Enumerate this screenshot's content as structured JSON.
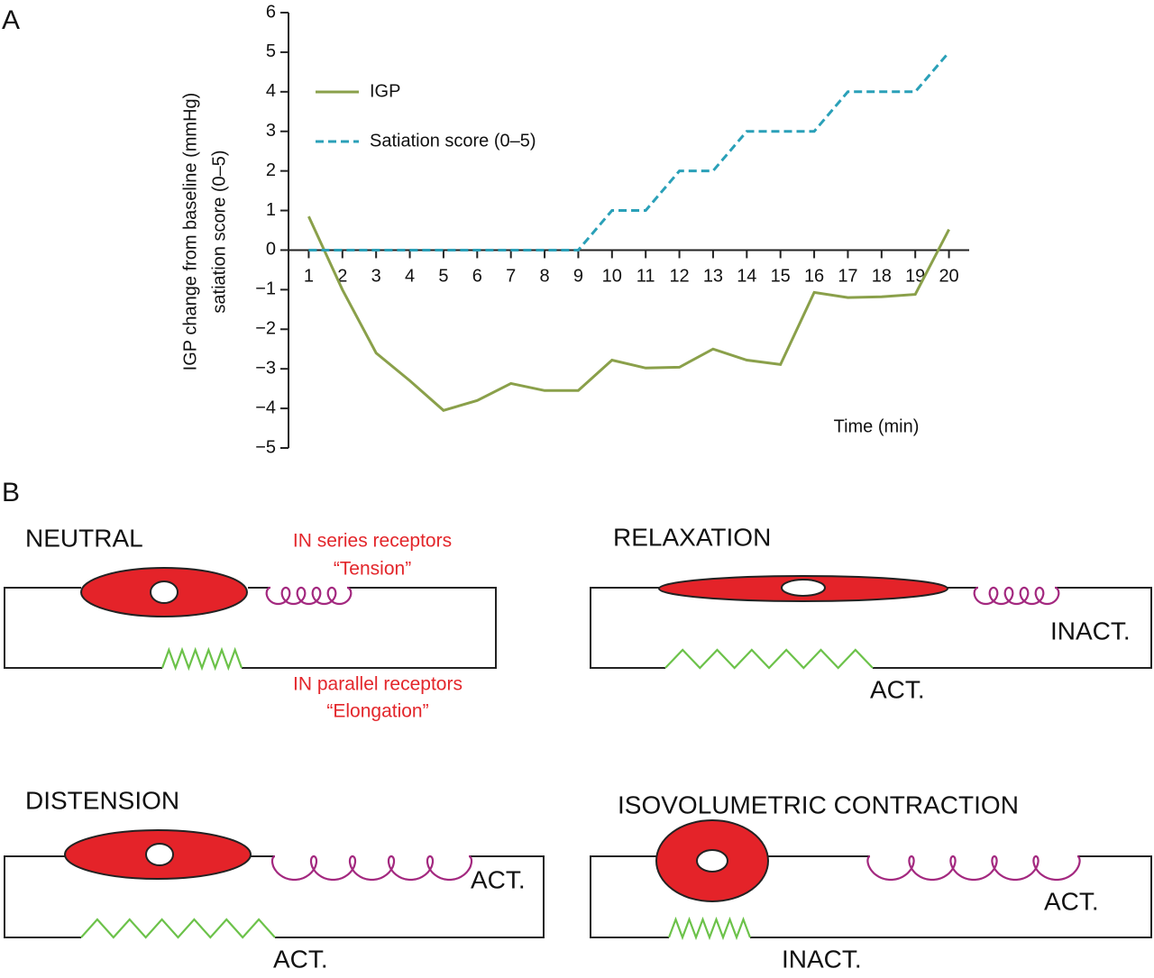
{
  "chart_data": {
    "type": "line",
    "panel_label": "A",
    "x": [
      1,
      2,
      3,
      4,
      5,
      6,
      7,
      8,
      9,
      10,
      11,
      12,
      13,
      14,
      15,
      16,
      17,
      18,
      19,
      20
    ],
    "xlim": [
      0.4,
      20.6
    ],
    "xticks": [
      1,
      2,
      3,
      4,
      5,
      6,
      7,
      8,
      9,
      10,
      11,
      12,
      13,
      14,
      15,
      16,
      17,
      18,
      19,
      20
    ],
    "ylim": [
      -5,
      6
    ],
    "yticks": [
      {
        "value": -5,
        "label": "−5"
      },
      {
        "value": -4,
        "label": "−4"
      },
      {
        "value": -3,
        "label": "−3"
      },
      {
        "value": -2,
        "label": "−2"
      },
      {
        "value": -1,
        "label": "−1"
      },
      0,
      1,
      2,
      3,
      4,
      5,
      6
    ],
    "y_label": [
      "IGP change from baseline (mmHg)",
      "satiation score (0–5)"
    ],
    "x_label": "Time (min)",
    "legend": "upper left",
    "series": [
      {
        "name": "IGP",
        "color": "#8aa04a",
        "style": "solid",
        "values": [
          0.85,
          -1.0,
          -2.6,
          -3.3,
          -4.05,
          -3.8,
          -3.37,
          -3.55,
          -3.55,
          -2.78,
          -2.98,
          -2.96,
          -2.5,
          -2.78,
          -2.89,
          -1.07,
          -1.2,
          -1.18,
          -1.12,
          0.52
        ]
      },
      {
        "name": "Satiation score (0–5)",
        "color": "#2aa0b8",
        "style": "dashed",
        "values": [
          0,
          0,
          0,
          0,
          0,
          0,
          0,
          0,
          0,
          1,
          1,
          2,
          2,
          3,
          3,
          3,
          4,
          4,
          4,
          5
        ]
      }
    ]
  },
  "panel_b": {
    "label": "B",
    "diagrams": [
      {
        "title": "NEUTRAL",
        "series_receptors": [
          "IN series receptors",
          "“Tension”"
        ],
        "parallel_receptors": [
          "IN parallel receptors",
          "“Elongation”"
        ]
      },
      {
        "title": "RELAXATION",
        "series_state": "INACT.",
        "parallel_state": "ACT."
      },
      {
        "title": "DISTENSION",
        "series_state": "ACT.",
        "parallel_state": "ACT."
      },
      {
        "title": "ISOVOLUMETRIC CONTRACTION",
        "series_state": "ACT.",
        "parallel_state": "INACT."
      }
    ]
  }
}
